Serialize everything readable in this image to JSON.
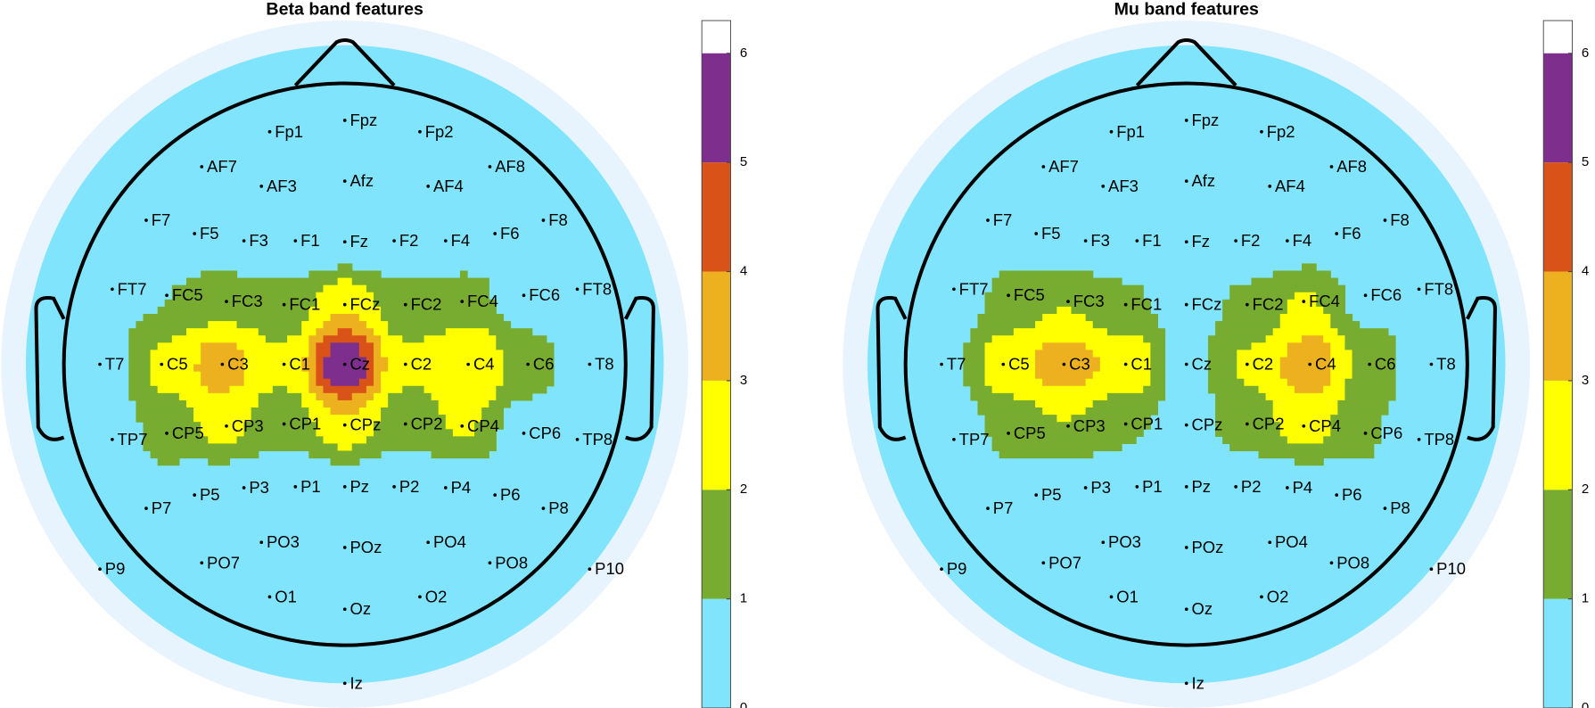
{
  "chart_data": [
    {
      "type": "topoplot",
      "title": "Beta band features",
      "electrodes": [
        "Fp1",
        "Fpz",
        "Fp2",
        "AF7",
        "AF3",
        "Afz",
        "AF4",
        "AF8",
        "F7",
        "F5",
        "F3",
        "F1",
        "Fz",
        "F2",
        "F4",
        "F6",
        "F8",
        "FT7",
        "FC5",
        "FC3",
        "FC1",
        "FCz",
        "FC2",
        "FC4",
        "FC6",
        "FT8",
        "T7",
        "C5",
        "C3",
        "C1",
        "Cz",
        "C2",
        "C4",
        "C6",
        "T8",
        "TP7",
        "CP5",
        "CP3",
        "CP1",
        "CPz",
        "CP2",
        "CP4",
        "CP6",
        "TP8",
        "P7",
        "P5",
        "P3",
        "P1",
        "Pz",
        "P2",
        "P4",
        "P6",
        "P8",
        "P9",
        "PO7",
        "PO3",
        "POz",
        "PO4",
        "PO8",
        "P10",
        "O1",
        "Oz",
        "O2",
        "Iz"
      ],
      "values": [
        0.3,
        0.3,
        0.3,
        0.3,
        0.3,
        0.3,
        0.3,
        0.3,
        0.3,
        0.3,
        0.3,
        0.3,
        0.3,
        0.3,
        0.3,
        0.3,
        0.3,
        0.3,
        1,
        1.6,
        1.3,
        2.8,
        1.3,
        1.5,
        0.5,
        0.3,
        0.3,
        2.2,
        3.5,
        2.2,
        6,
        2.2,
        3,
        1.4,
        0.3,
        0.3,
        1.5,
        2.3,
        1.3,
        2.8,
        1.3,
        2.2,
        0.5,
        0.3,
        0.3,
        0.3,
        0.3,
        0.3,
        0.3,
        0.3,
        0.3,
        0.3,
        0.3,
        0.3,
        0.3,
        0.3,
        0.3,
        0.3,
        0.3,
        0.3,
        0.3,
        0.3,
        0.3,
        0.3
      ],
      "ylim": [
        0,
        6.3
      ],
      "yticks": [
        0,
        1,
        2,
        3,
        4,
        5,
        6
      ],
      "colors": [
        "#80e5fc",
        "#77ac30",
        "#ffff00",
        "#edb120",
        "#d95319",
        "#7e2f8e"
      ]
    },
    {
      "type": "topoplot",
      "title": "Mu band features",
      "electrodes": [
        "Fp1",
        "Fpz",
        "Fp2",
        "AF7",
        "AF3",
        "Afz",
        "AF4",
        "AF8",
        "F7",
        "F5",
        "F3",
        "F1",
        "Fz",
        "F2",
        "F4",
        "F6",
        "F8",
        "FT7",
        "FC5",
        "FC3",
        "FC1",
        "FCz",
        "FC2",
        "FC4",
        "FC6",
        "FT8",
        "T7",
        "C5",
        "C3",
        "C1",
        "Cz",
        "C2",
        "C4",
        "C6",
        "T8",
        "TP7",
        "CP5",
        "CP3",
        "CP1",
        "CPz",
        "CP2",
        "CP4",
        "CP6",
        "TP8",
        "P7",
        "P5",
        "P3",
        "P1",
        "Pz",
        "P2",
        "P4",
        "P6",
        "P8",
        "P9",
        "PO7",
        "PO3",
        "POz",
        "PO4",
        "PO8",
        "P10",
        "O1",
        "Oz",
        "O2",
        "Iz"
      ],
      "values": [
        0.3,
        0.3,
        0.3,
        0.3,
        0.3,
        0.3,
        0.3,
        0.3,
        0.3,
        0.3,
        0.3,
        0.3,
        0.3,
        0.3,
        0.3,
        0.3,
        0.3,
        0.3,
        1.3,
        2,
        1.2,
        0.5,
        1.2,
        2.2,
        0.6,
        0.3,
        0.3,
        2.5,
        3.5,
        2.8,
        0.6,
        2.2,
        3.6,
        1.5,
        0.3,
        0.3,
        1.3,
        2,
        1.2,
        0.5,
        1.5,
        2.5,
        1.2,
        0.3,
        0.3,
        0.3,
        0.3,
        0.3,
        0.3,
        0.3,
        0.3,
        0.3,
        0.3,
        0.3,
        0.3,
        0.3,
        0.3,
        0.3,
        0.3,
        0.3,
        0.3,
        0.3,
        0.3,
        0.3
      ],
      "ylim": [
        0,
        6.3
      ],
      "yticks": [
        0,
        1,
        2,
        3,
        4,
        5,
        6
      ],
      "colors": [
        "#80e5fc",
        "#77ac30",
        "#ffff00",
        "#edb120",
        "#d95319",
        "#7e2f8e"
      ]
    }
  ]
}
